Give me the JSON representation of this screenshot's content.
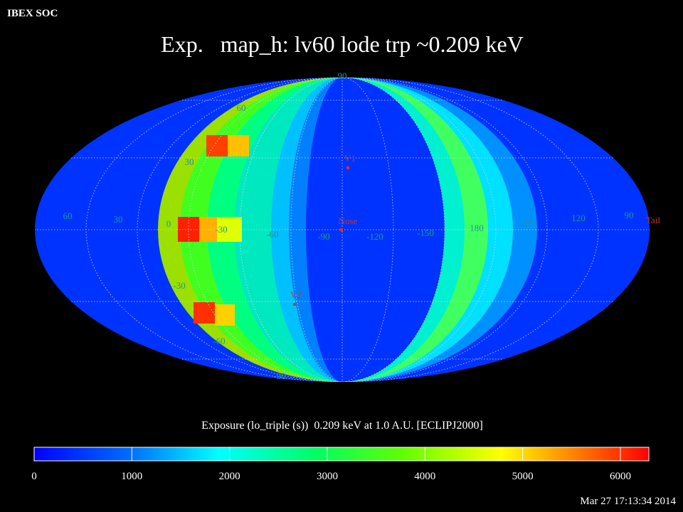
{
  "header": {
    "label": "IBEX SOC",
    "title": "Exp.   map_h: lv60 lode trp ~0.209 keV"
  },
  "map": {
    "latitude_labels": [
      "90",
      "60",
      "30",
      "0",
      "-30",
      "-60",
      "-90"
    ],
    "longitude_labels": [
      "60",
      "30",
      "-30",
      "-60",
      "-90",
      "-120",
      "-150",
      "180",
      "150",
      "120",
      "90"
    ],
    "markers": [
      "V1",
      "Nose",
      "V2",
      "Tail"
    ]
  },
  "colorbar": {
    "label": "Exposure (lo_triple (s))  0.209 keV at 1.0 A.U. [ECLIPJ2000]",
    "ticks": [
      0,
      1000,
      2000,
      3000,
      4000,
      5000,
      6000
    ]
  },
  "timestamp": "Mar 27 17:13:34 2014"
}
